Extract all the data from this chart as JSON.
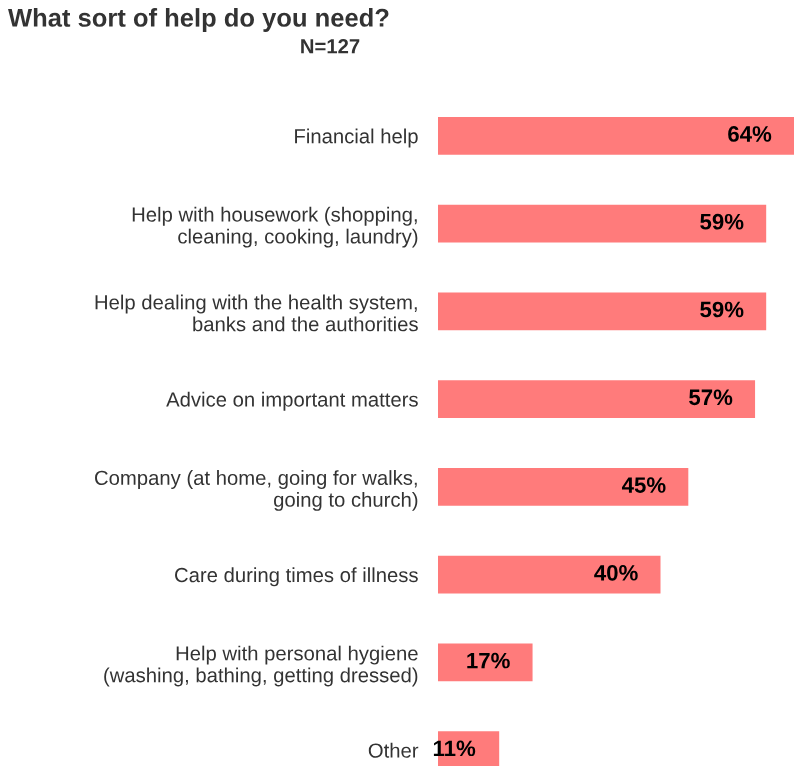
{
  "chart_data": {
    "type": "bar",
    "orientation": "horizontal",
    "title": "What sort of help do you need?",
    "subtitle": "N=127",
    "categories": [
      "Financial help",
      "Help with housework (shopping,\ncleaning, cooking, laundry)",
      "Help dealing with the health system,\nbanks and the authorities",
      "Advice on important matters",
      "Company (at home, going for walks,\ngoing to church)",
      "Care during times of illness",
      "Help with personal hygiene\n(washing, bathing, getting dressed)",
      "Other"
    ],
    "values": [
      64,
      59,
      59,
      57,
      45,
      40,
      17,
      11
    ],
    "value_labels": [
      "64%",
      "59%",
      "59%",
      "57%",
      "45%",
      "40%",
      "17%",
      "11%"
    ],
    "color": "#ff7b7b",
    "grid": false,
    "legend": false
  }
}
